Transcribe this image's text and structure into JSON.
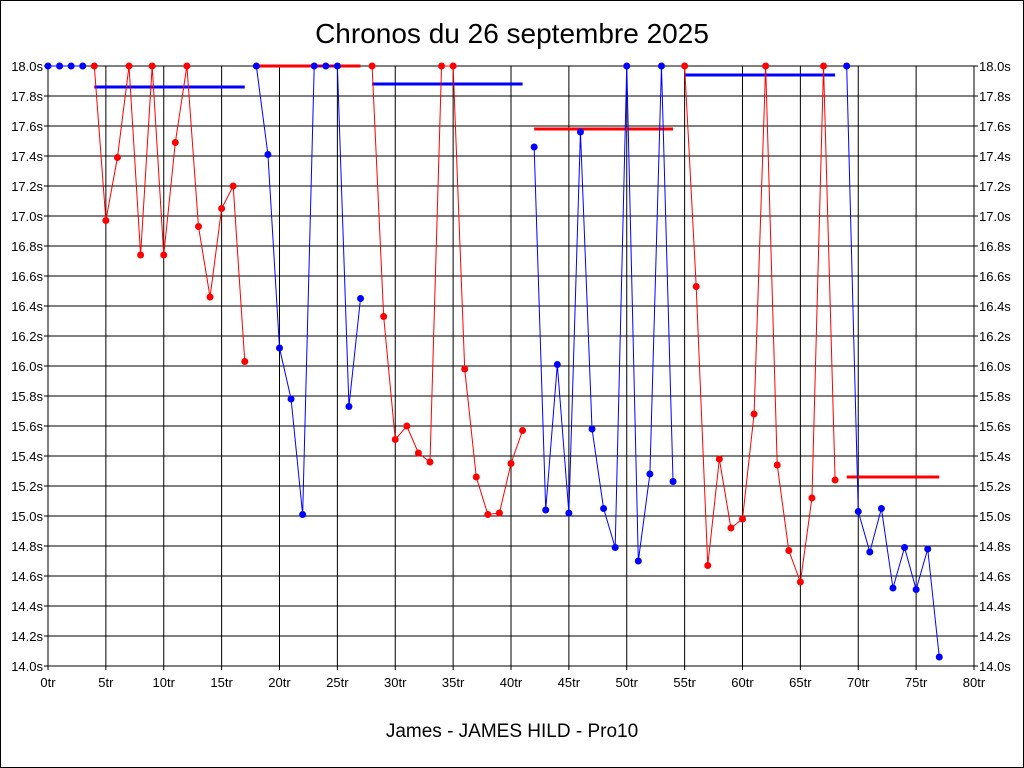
{
  "chart_data": {
    "type": "line",
    "title": "Chronos du 26 septembre 2025",
    "footer": "James - JAMES HILD - Pro10",
    "x_ticks": [
      "0tr",
      "5tr",
      "10tr",
      "15tr",
      "20tr",
      "25tr",
      "30tr",
      "35tr",
      "40tr",
      "45tr",
      "50tr",
      "55tr",
      "60tr",
      "65tr",
      "70tr",
      "75tr",
      "80tr"
    ],
    "y_ticks": [
      "14.0s",
      "14.2s",
      "14.4s",
      "14.6s",
      "14.8s",
      "15.0s",
      "15.2s",
      "15.4s",
      "15.6s",
      "15.8s",
      "16.0s",
      "16.2s",
      "16.4s",
      "16.6s",
      "16.8s",
      "17.0s",
      "17.2s",
      "17.4s",
      "17.6s",
      "17.8s",
      "18.0s"
    ],
    "xlim": [
      0,
      80
    ],
    "ylim": [
      14.0,
      18.0
    ],
    "grid": true,
    "colors": {
      "red": "#ff0000",
      "blue": "#0000ff"
    },
    "segments": [
      {
        "color": "blue",
        "points": [
          [
            0,
            18.0
          ],
          [
            1,
            18.0
          ],
          [
            2,
            18.0
          ],
          [
            3,
            18.0
          ]
        ]
      },
      {
        "color": "red",
        "points": [
          [
            4,
            18.0
          ],
          [
            5,
            16.97
          ],
          [
            6,
            17.39
          ],
          [
            7,
            18.0
          ],
          [
            8,
            16.74
          ],
          [
            9,
            18.0
          ],
          [
            10,
            16.74
          ],
          [
            11,
            17.49
          ],
          [
            12,
            18.0
          ],
          [
            13,
            16.93
          ],
          [
            14,
            16.46
          ],
          [
            15,
            17.05
          ],
          [
            16,
            17.2
          ],
          [
            17,
            16.03
          ]
        ]
      },
      {
        "color": "blue",
        "points": [
          [
            18,
            18.0
          ],
          [
            19,
            17.41
          ],
          [
            20,
            16.12
          ],
          [
            21,
            15.78
          ],
          [
            22,
            15.01
          ],
          [
            23,
            18.0
          ],
          [
            24,
            18.0
          ],
          [
            25,
            18.0
          ],
          [
            26,
            15.73
          ],
          [
            27,
            16.45
          ]
        ]
      },
      {
        "color": "red",
        "points": [
          [
            28,
            18.0
          ],
          [
            29,
            16.33
          ],
          [
            30,
            15.51
          ],
          [
            31,
            15.6
          ],
          [
            32,
            15.42
          ],
          [
            33,
            15.36
          ],
          [
            34,
            18.0
          ],
          [
            35,
            18.0
          ],
          [
            36,
            15.98
          ],
          [
            37,
            15.26
          ],
          [
            38,
            15.01
          ],
          [
            39,
            15.02
          ],
          [
            40,
            15.35
          ],
          [
            41,
            15.57
          ]
        ]
      },
      {
        "color": "blue",
        "points": [
          [
            42,
            17.46
          ],
          [
            43,
            15.04
          ],
          [
            44,
            16.01
          ],
          [
            45,
            15.02
          ],
          [
            46,
            17.56
          ],
          [
            47,
            15.58
          ],
          [
            48,
            15.05
          ],
          [
            49,
            14.79
          ],
          [
            50,
            18.0
          ],
          [
            51,
            14.7
          ],
          [
            52,
            15.28
          ],
          [
            53,
            18.0
          ],
          [
            54,
            15.23
          ]
        ]
      },
      {
        "color": "red",
        "points": [
          [
            55,
            18.0
          ],
          [
            56,
            16.53
          ],
          [
            57,
            14.67
          ],
          [
            58,
            15.38
          ],
          [
            59,
            14.92
          ],
          [
            60,
            14.98
          ],
          [
            61,
            15.68
          ],
          [
            62,
            18.0
          ],
          [
            63,
            15.34
          ],
          [
            64,
            14.77
          ],
          [
            65,
            14.56
          ],
          [
            66,
            15.12
          ],
          [
            67,
            18.0
          ],
          [
            68,
            15.24
          ]
        ]
      },
      {
        "color": "blue",
        "points": [
          [
            69,
            18.0
          ],
          [
            70,
            15.03
          ],
          [
            71,
            14.76
          ],
          [
            72,
            15.05
          ],
          [
            73,
            14.52
          ],
          [
            74,
            14.79
          ],
          [
            75,
            14.51
          ],
          [
            76,
            14.78
          ],
          [
            77,
            14.06
          ]
        ]
      }
    ],
    "averages": [
      {
        "color": "blue",
        "x": [
          4,
          17
        ],
        "y": 17.86
      },
      {
        "color": "red",
        "x": [
          18,
          27
        ],
        "y": 18.0
      },
      {
        "color": "blue",
        "x": [
          28,
          41
        ],
        "y": 17.88
      },
      {
        "color": "red",
        "x": [
          42,
          54
        ],
        "y": 17.58
      },
      {
        "color": "blue",
        "x": [
          55,
          68
        ],
        "y": 17.94
      },
      {
        "color": "red",
        "x": [
          69,
          77
        ],
        "y": 15.26
      }
    ]
  }
}
